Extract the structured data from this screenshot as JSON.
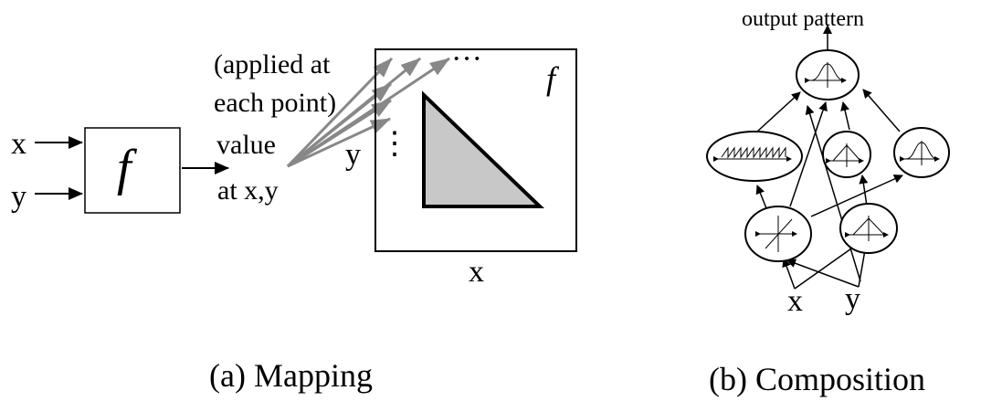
{
  "mapping": {
    "input_x": "x",
    "input_y": "y",
    "function_symbol": "f",
    "annotation_lines": [
      "(applied at",
      "each point)",
      "value",
      "at x,y"
    ],
    "canvas_function_symbol": "f",
    "canvas_axis_x": "x",
    "canvas_axis_y": "y",
    "ellipsis_h": "···",
    "ellipsis_v": "⋮",
    "caption": "(a) Mapping",
    "colors": {
      "triangle_fill": "#c8c8c8",
      "arrow_gray": "#888888"
    }
  },
  "composition": {
    "output_label": "output pattern",
    "input_x": "x",
    "input_y": "y",
    "caption": "(b) Composition",
    "nodes": [
      {
        "id": "output",
        "glyph": "gaussian-icon"
      },
      {
        "id": "sawtooth",
        "glyph": "sawtooth-icon"
      },
      {
        "id": "tent-top",
        "glyph": "triangle-icon"
      },
      {
        "id": "gauss-right",
        "glyph": "gaussian-icon"
      },
      {
        "id": "linear",
        "glyph": "linear-icon"
      },
      {
        "id": "tent-bottom",
        "glyph": "triangle-icon"
      }
    ]
  }
}
